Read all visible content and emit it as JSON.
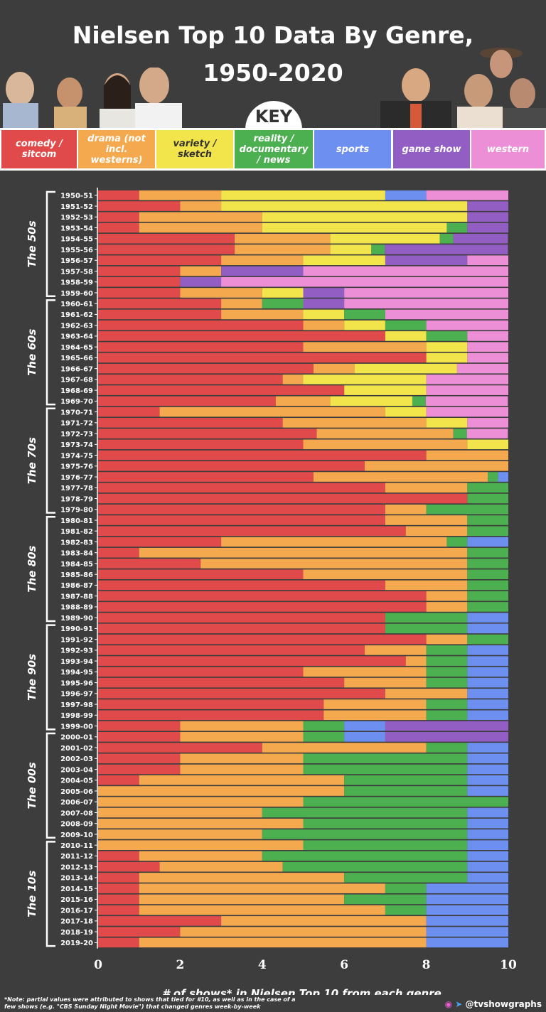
{
  "title_line1": "Nielsen Top 10 Data By Genre,",
  "title_line2": "1950-2020",
  "key_label": "KEY",
  "colors": {
    "comedy": "#e04a4a",
    "drama": "#f5a94e",
    "variety": "#f2e44b",
    "reality": "#4caf50",
    "sports": "#6d8ff0",
    "game": "#935ec4",
    "western": "#ec8fd6"
  },
  "legend": [
    {
      "key": "comedy",
      "label": "comedy / sitcom"
    },
    {
      "key": "drama",
      "label": "drama (not incl. westerns)"
    },
    {
      "key": "variety",
      "label": "variety / sketch"
    },
    {
      "key": "reality",
      "label": "reality / documentary / news"
    },
    {
      "key": "sports",
      "label": "sports"
    },
    {
      "key": "game",
      "label": "game show"
    },
    {
      "key": "western",
      "label": "western"
    }
  ],
  "footnote": "*Note: partial values were attributed to shows that tied for #10, as well as in the case of a few shows (e.g. \"CBS Sunday Night Movie\") that changed genres week-by-week",
  "handle": "@tvshowgraphs",
  "chart_data": {
    "type": "bar",
    "orientation": "horizontal",
    "stacked": true,
    "xlabel": "# of shows* in Nielsen Top 10 from each genre",
    "xlim": [
      0,
      10
    ],
    "xticks": [
      0,
      2,
      4,
      6,
      8,
      10
    ],
    "categories": [
      "1950-51",
      "1951-52",
      "1952-53",
      "1953-54",
      "1954-55",
      "1955-56",
      "1956-57",
      "1957-58",
      "1958-59",
      "1959-60",
      "1960-61",
      "1961-62",
      "1962-63",
      "1963-64",
      "1964-65",
      "1965-66",
      "1966-67",
      "1967-68",
      "1968-69",
      "1969-70",
      "1970-71",
      "1971-72",
      "1972-73",
      "1973-74",
      "1974-75",
      "1975-76",
      "1976-77",
      "1977-78",
      "1978-79",
      "1979-80",
      "1980-81",
      "1981-82",
      "1982-83",
      "1983-84",
      "1984-85",
      "1985-86",
      "1986-87",
      "1987-88",
      "1988-89",
      "1989-90",
      "1990-91",
      "1991-92",
      "1992-93",
      "1993-94",
      "1994-95",
      "1995-96",
      "1996-97",
      "1997-98",
      "1998-99",
      "1999-00",
      "2000-01",
      "2001-02",
      "2002-03",
      "2003-04",
      "2004-05",
      "2005-06",
      "2006-07",
      "2007-08",
      "2008-09",
      "2009-10",
      "2010-11",
      "2011-12",
      "2012-13",
      "2013-14",
      "2014-15",
      "2015-16",
      "2016-17",
      "2017-18",
      "2018-19",
      "2019-20"
    ],
    "decades": [
      {
        "label": "The 50s",
        "start": 0,
        "end": 9
      },
      {
        "label": "The 60s",
        "start": 10,
        "end": 19
      },
      {
        "label": "The 70s",
        "start": 20,
        "end": 29
      },
      {
        "label": "The 80s",
        "start": 30,
        "end": 39
      },
      {
        "label": "The 90s",
        "start": 40,
        "end": 49
      },
      {
        "label": "The 00s",
        "start": 50,
        "end": 59
      },
      {
        "label": "The 10s",
        "start": 60,
        "end": 69
      }
    ],
    "series_order": [
      "comedy",
      "drama",
      "variety",
      "reality",
      "sports",
      "game",
      "western"
    ],
    "series_names": {
      "comedy": "comedy / sitcom",
      "drama": "drama (not incl. westerns)",
      "variety": "variety / sketch",
      "reality": "reality / documentary / news",
      "sports": "sports",
      "game": "game show",
      "western": "western"
    },
    "rows": [
      [
        1,
        2,
        4,
        0,
        1,
        0,
        2
      ],
      [
        2,
        1,
        6,
        0,
        0,
        1,
        0
      ],
      [
        1,
        3,
        5,
        0,
        0,
        1,
        0
      ],
      [
        1,
        3,
        4.5,
        0.5,
        0,
        1,
        0
      ],
      [
        3.33,
        2.33,
        2.67,
        0.33,
        0,
        1.33,
        0
      ],
      [
        3.33,
        2.33,
        1,
        0.33,
        0,
        3,
        0
      ],
      [
        3,
        2,
        2,
        0,
        0,
        2,
        1
      ],
      [
        2,
        1,
        0,
        0,
        0,
        2,
        5
      ],
      [
        2,
        0,
        0,
        0,
        0,
        1,
        7
      ],
      [
        2,
        2,
        1,
        0,
        0,
        1,
        4
      ],
      [
        3,
        1,
        0,
        1,
        0,
        1,
        4
      ],
      [
        3,
        2,
        1,
        1,
        0,
        0,
        3
      ],
      [
        5,
        1,
        1,
        1,
        0,
        0,
        2
      ],
      [
        7,
        0,
        1,
        1,
        0,
        0,
        1
      ],
      [
        5,
        3,
        1,
        0,
        0,
        0,
        1
      ],
      [
        8,
        0,
        1,
        0,
        0,
        0,
        1
      ],
      [
        5.25,
        1,
        2.5,
        0,
        0,
        0,
        1.25
      ],
      [
        4.5,
        0.5,
        3,
        0,
        0,
        0,
        2
      ],
      [
        6,
        0,
        2,
        0,
        0,
        0,
        2
      ],
      [
        4.33,
        1.33,
        2,
        0.33,
        0,
        0,
        2
      ],
      [
        1.5,
        5.5,
        1,
        0,
        0,
        0,
        2
      ],
      [
        4.5,
        3.5,
        1,
        0,
        0,
        0,
        1
      ],
      [
        5.33,
        3.33,
        0,
        0.33,
        0,
        0,
        1
      ],
      [
        5,
        4,
        1,
        0,
        0,
        0,
        0
      ],
      [
        8,
        2,
        0,
        0,
        0,
        0,
        0
      ],
      [
        6.5,
        3.5,
        0,
        0,
        0,
        0,
        0
      ],
      [
        5.25,
        4.25,
        0,
        0.25,
        0.25,
        0,
        0
      ],
      [
        7,
        2,
        0,
        1,
        0,
        0,
        0
      ],
      [
        9,
        0,
        0,
        1,
        0,
        0,
        0
      ],
      [
        7,
        1,
        0,
        2,
        0,
        0,
        0
      ],
      [
        7,
        2,
        0,
        1,
        0,
        0,
        0
      ],
      [
        7.5,
        1.5,
        0,
        1,
        0,
        0,
        0
      ],
      [
        3,
        5.5,
        0,
        0.5,
        1,
        0,
        0
      ],
      [
        1,
        8,
        0,
        1,
        0,
        0,
        0
      ],
      [
        2.5,
        6.5,
        0,
        1,
        0,
        0,
        0
      ],
      [
        5,
        4,
        0,
        1,
        0,
        0,
        0
      ],
      [
        7,
        2,
        0,
        1,
        0,
        0,
        0
      ],
      [
        8,
        1,
        0,
        1,
        0,
        0,
        0
      ],
      [
        8,
        1,
        0,
        1,
        0,
        0,
        0
      ],
      [
        7,
        0,
        0,
        2,
        1,
        0,
        0
      ],
      [
        7,
        0,
        0,
        2,
        1,
        0,
        0
      ],
      [
        8,
        1,
        0,
        1,
        0,
        0,
        0
      ],
      [
        6.5,
        1.5,
        0,
        1,
        1,
        0,
        0
      ],
      [
        7.5,
        0.5,
        0,
        1,
        1,
        0,
        0
      ],
      [
        5,
        3,
        0,
        1,
        1,
        0,
        0
      ],
      [
        6,
        2,
        0,
        1,
        1,
        0,
        0
      ],
      [
        7,
        2,
        0,
        0,
        1,
        0,
        0
      ],
      [
        5.5,
        2.5,
        0,
        1,
        1,
        0,
        0
      ],
      [
        5.5,
        2.5,
        0,
        1,
        1,
        0,
        0
      ],
      [
        2,
        3,
        0,
        1,
        1,
        3,
        0
      ],
      [
        2,
        3,
        0,
        1,
        1,
        3,
        0
      ],
      [
        4,
        4,
        0,
        1,
        1,
        0,
        0
      ],
      [
        2,
        3,
        0,
        4,
        1,
        0,
        0
      ],
      [
        2,
        3,
        0,
        4,
        1,
        0,
        0
      ],
      [
        1,
        5,
        0,
        3,
        1,
        0,
        0
      ],
      [
        0,
        6,
        0,
        3,
        1,
        0,
        0
      ],
      [
        0,
        5,
        0,
        5,
        0,
        0,
        0
      ],
      [
        0,
        4,
        0,
        5,
        1,
        0,
        0
      ],
      [
        0,
        5,
        0,
        4,
        1,
        0,
        0
      ],
      [
        0,
        4,
        0,
        5,
        1,
        0,
        0
      ],
      [
        0,
        5,
        0,
        4,
        1,
        0,
        0
      ],
      [
        1,
        3,
        0,
        5,
        1,
        0,
        0
      ],
      [
        1.5,
        3,
        0,
        4.5,
        1,
        0,
        0
      ],
      [
        1,
        5,
        0,
        3,
        1,
        0,
        0
      ],
      [
        1,
        6,
        0,
        1,
        2,
        0,
        0
      ],
      [
        1,
        5,
        0,
        2,
        2,
        0,
        0
      ],
      [
        1,
        6,
        0,
        1,
        2,
        0,
        0
      ],
      [
        3,
        5,
        0,
        0,
        2,
        0,
        0
      ],
      [
        2,
        6,
        0,
        0,
        2,
        0,
        0
      ],
      [
        1,
        7,
        0,
        0,
        2,
        0,
        0
      ]
    ]
  }
}
